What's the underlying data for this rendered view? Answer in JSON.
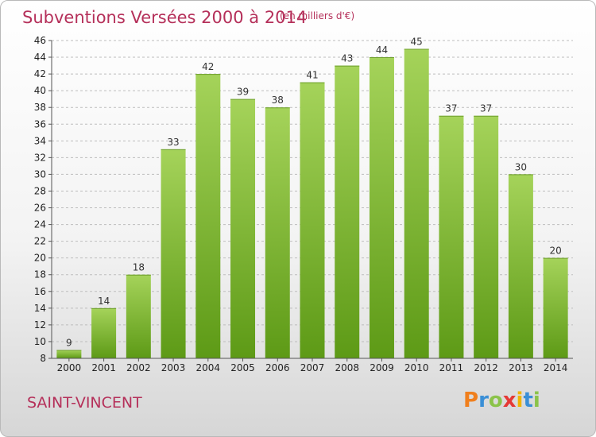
{
  "header": {
    "title": "Subventions Versées 2000 à 2014",
    "subtitle": "(en milliers d'€)"
  },
  "footer": {
    "commune": "SAINT-VINCENT",
    "logo_text": "Proxiti"
  },
  "colors": {
    "title": "#b5305a",
    "bar_light": "#a5d35a",
    "bar_dark": "#5d9a16",
    "grid": "#bdbdbd"
  },
  "chart_data": {
    "type": "bar",
    "title": "Subventions Versées 2000 à 2014",
    "subtitle": "(en milliers d'€)",
    "xlabel": "",
    "ylabel": "",
    "categories": [
      "2000",
      "2001",
      "2002",
      "2003",
      "2004",
      "2005",
      "2006",
      "2007",
      "2008",
      "2009",
      "2010",
      "2011",
      "2012",
      "2013",
      "2014"
    ],
    "values": [
      9,
      14,
      18,
      33,
      42,
      39,
      38,
      41,
      43,
      44,
      45,
      37,
      37,
      30,
      20
    ],
    "ylim": [
      8,
      46
    ],
    "yticks": [
      8,
      10,
      12,
      14,
      16,
      18,
      20,
      22,
      24,
      26,
      28,
      30,
      32,
      34,
      36,
      38,
      40,
      42,
      44,
      46
    ],
    "grid": true,
    "legend": "none",
    "data_labels": true
  }
}
